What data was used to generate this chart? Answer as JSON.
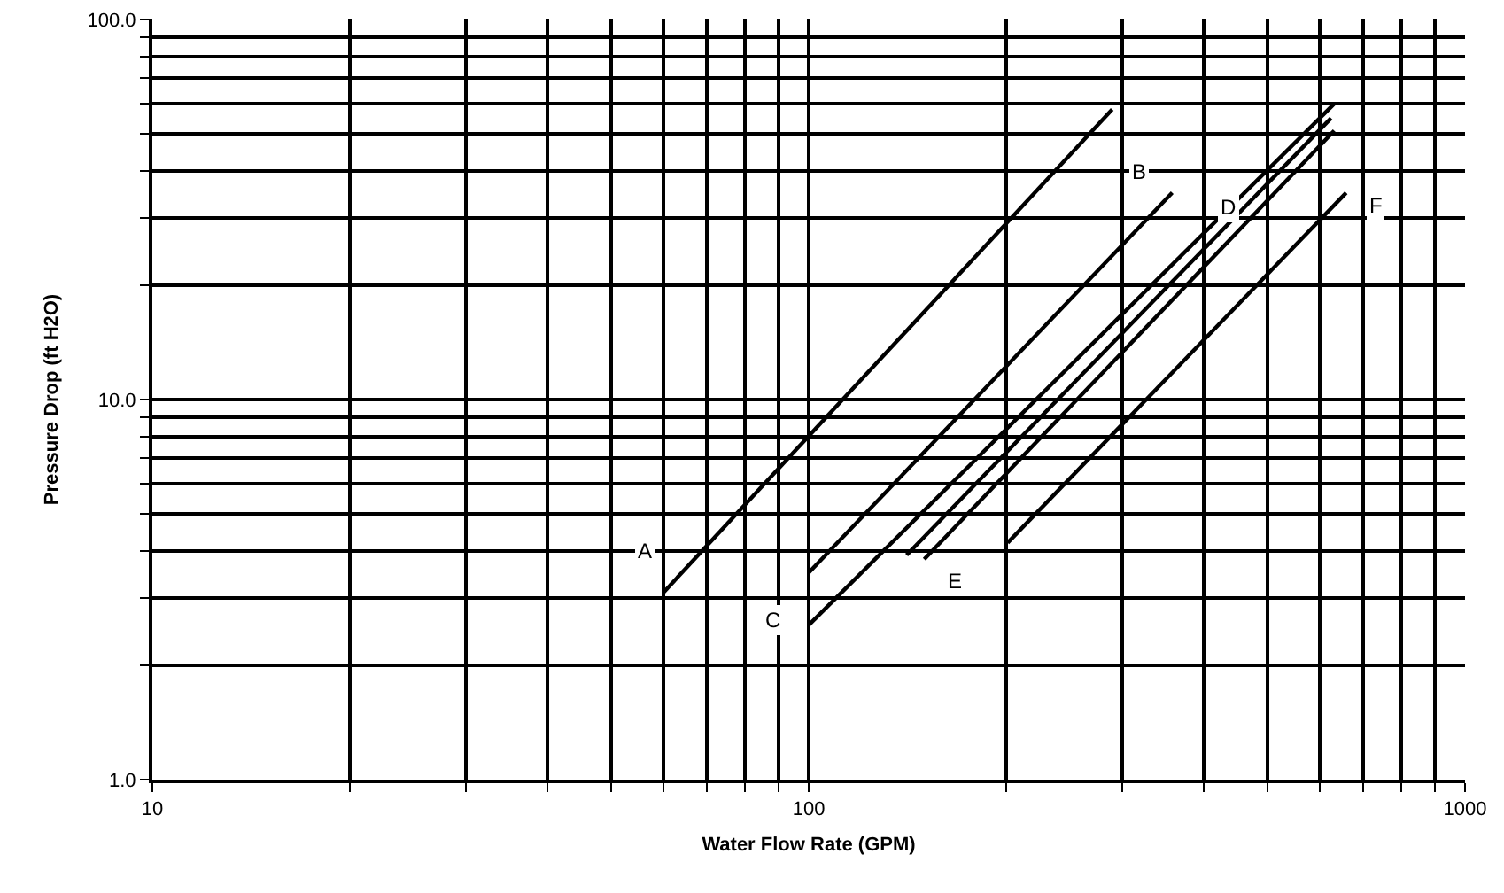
{
  "chart_data": {
    "type": "line",
    "xlabel": "Water Flow Rate (GPM)",
    "ylabel": "Pressure Drop (ft H2O)",
    "log": "xy",
    "grid": true,
    "legend": false,
    "marker": "none",
    "line_style": "solid",
    "xlim": [
      10,
      1000
    ],
    "ylim": [
      1,
      100
    ],
    "xticks": [
      10,
      {
        "value": 20,
        "label": null
      },
      {
        "value": 30,
        "label": null
      },
      {
        "value": 40,
        "label": null
      },
      {
        "value": 50,
        "label": null
      },
      {
        "value": 60,
        "label": null
      },
      {
        "value": 70,
        "label": null
      },
      {
        "value": 80,
        "label": null
      },
      {
        "value": 90,
        "label": null
      },
      100,
      {
        "value": 200,
        "label": null
      },
      {
        "value": 300,
        "label": null
      },
      {
        "value": 400,
        "label": null
      },
      {
        "value": 500,
        "label": null
      },
      {
        "value": 600,
        "label": null
      },
      {
        "value": 700,
        "label": null
      },
      {
        "value": 800,
        "label": null
      },
      {
        "value": 900,
        "label": null
      },
      1000
    ],
    "yticks": [
      {
        "value": 1,
        "label": "1.0"
      },
      {
        "value": 2,
        "label": null
      },
      {
        "value": 3,
        "label": null
      },
      {
        "value": 4,
        "label": null
      },
      {
        "value": 5,
        "label": null
      },
      {
        "value": 6,
        "label": null
      },
      {
        "value": 7,
        "label": null
      },
      {
        "value": 8,
        "label": null
      },
      {
        "value": 9,
        "label": null
      },
      {
        "value": 10,
        "label": "10.0"
      },
      {
        "value": 20,
        "label": null
      },
      {
        "value": 30,
        "label": null
      },
      {
        "value": 40,
        "label": null
      },
      {
        "value": 50,
        "label": null
      },
      {
        "value": 60,
        "label": null
      },
      {
        "value": 70,
        "label": null
      },
      {
        "value": 80,
        "label": null
      },
      {
        "value": 90,
        "label": null
      },
      {
        "value": 100,
        "label": "100.0"
      }
    ],
    "series": [
      {
        "name": "A",
        "color": "#000000",
        "x": [
          60,
          290
        ],
        "values": [
          3.1,
          58
        ]
      },
      {
        "name": "B",
        "color": "#000000",
        "x": [
          100,
          358
        ],
        "values": [
          3.5,
          35
        ]
      },
      {
        "name": "C",
        "color": "#000000",
        "x": [
          100,
          632
        ],
        "values": [
          2.55,
          60
        ]
      },
      {
        "name": "D",
        "color": "#000000",
        "x": [
          141,
          625
        ],
        "values": [
          3.9,
          55
        ]
      },
      {
        "name": "E",
        "color": "#000000",
        "x": [
          150,
          632
        ],
        "values": [
          3.8,
          51
        ]
      },
      {
        "name": "F",
        "color": "#000000",
        "x": [
          201,
          659
        ],
        "values": [
          4.2,
          35
        ]
      }
    ]
  }
}
